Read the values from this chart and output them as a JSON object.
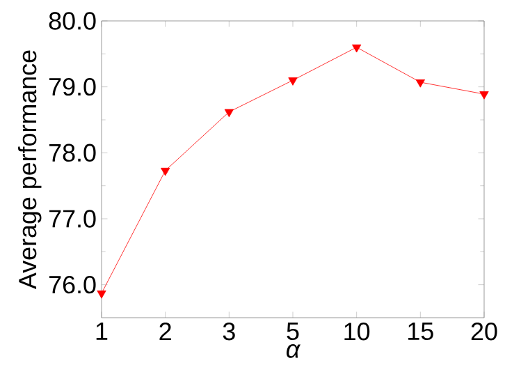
{
  "chart_data": {
    "type": "line",
    "xlabel": "α",
    "ylabel": "Average performance",
    "categories": [
      "1",
      "2",
      "3",
      "5",
      "10",
      "15",
      "20"
    ],
    "series": [
      {
        "color": "#ff0000",
        "values": [
          75.87,
          77.73,
          78.62,
          79.1,
          79.6,
          79.07,
          78.89
        ]
      }
    ],
    "ylim": [
      75.5,
      80.0
    ],
    "yticks": [
      {
        "value": 76,
        "label": "76.0"
      },
      {
        "value": 77,
        "label": "77.0"
      },
      {
        "value": 78,
        "label": "78.0"
      },
      {
        "value": 79,
        "label": "79.0"
      },
      {
        "value": 80,
        "label": "80.0"
      }
    ],
    "marker": "triangle",
    "grid": false
  }
}
